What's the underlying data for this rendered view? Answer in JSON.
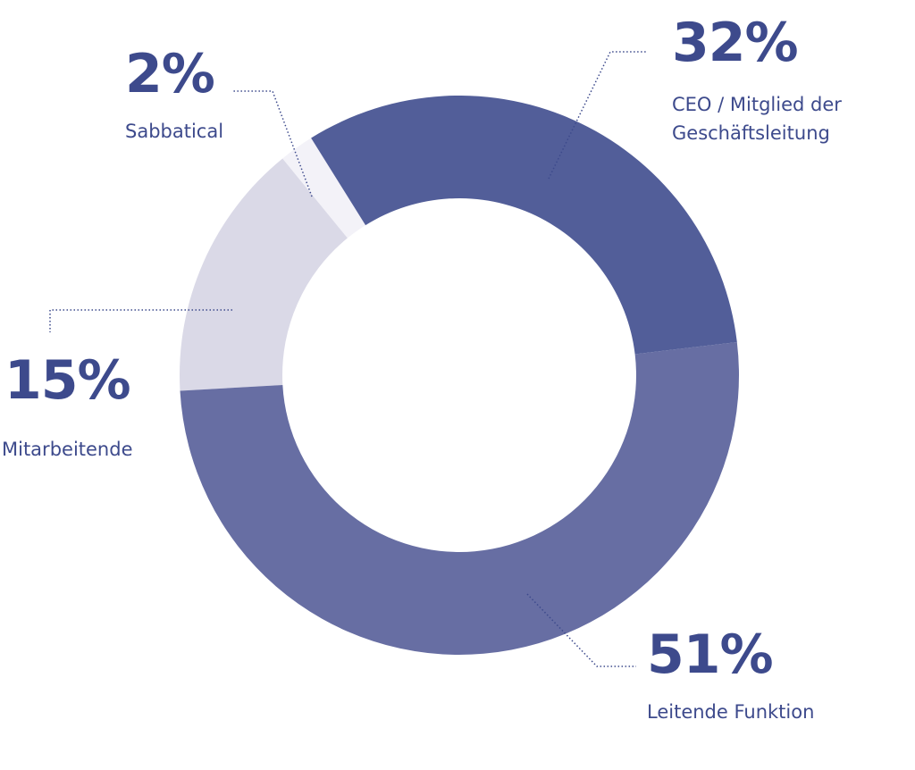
{
  "chart_data": {
    "type": "donut",
    "categories": [
      "CEO / Mitglied der Geschäftsleitung",
      "Leitende Funktion",
      "Mitarbeitende",
      "Sabbatical"
    ],
    "values": [
      32,
      51,
      15,
      2
    ],
    "value_labels": [
      "32%",
      "51%",
      "15%",
      "2%"
    ],
    "colors": [
      "#525e99",
      "#676ea3",
      "#dad9e7",
      "#f3f2f8"
    ]
  }
}
